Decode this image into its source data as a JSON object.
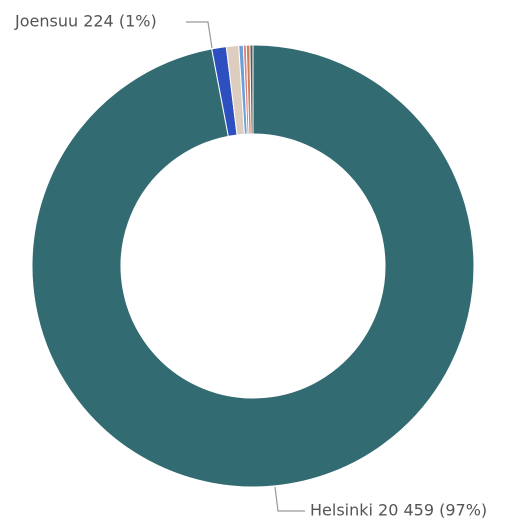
{
  "chart_data": {
    "type": "donut",
    "categories": [
      "Helsinki",
      "Joensuu",
      null,
      null,
      null,
      null,
      null
    ],
    "values": [
      20459,
      224,
      190,
      70,
      45,
      55,
      47
    ],
    "labels": [
      "Helsinki 20 459 (97%)",
      "Joensuu 224 (1%)",
      null,
      null,
      null,
      null,
      null
    ],
    "colors": [
      "#336b73",
      "#2e4fbf",
      "#dccdbf",
      "#6a9fd8",
      "#e07c7c",
      "#c8825a",
      "#5a5a5a"
    ]
  }
}
